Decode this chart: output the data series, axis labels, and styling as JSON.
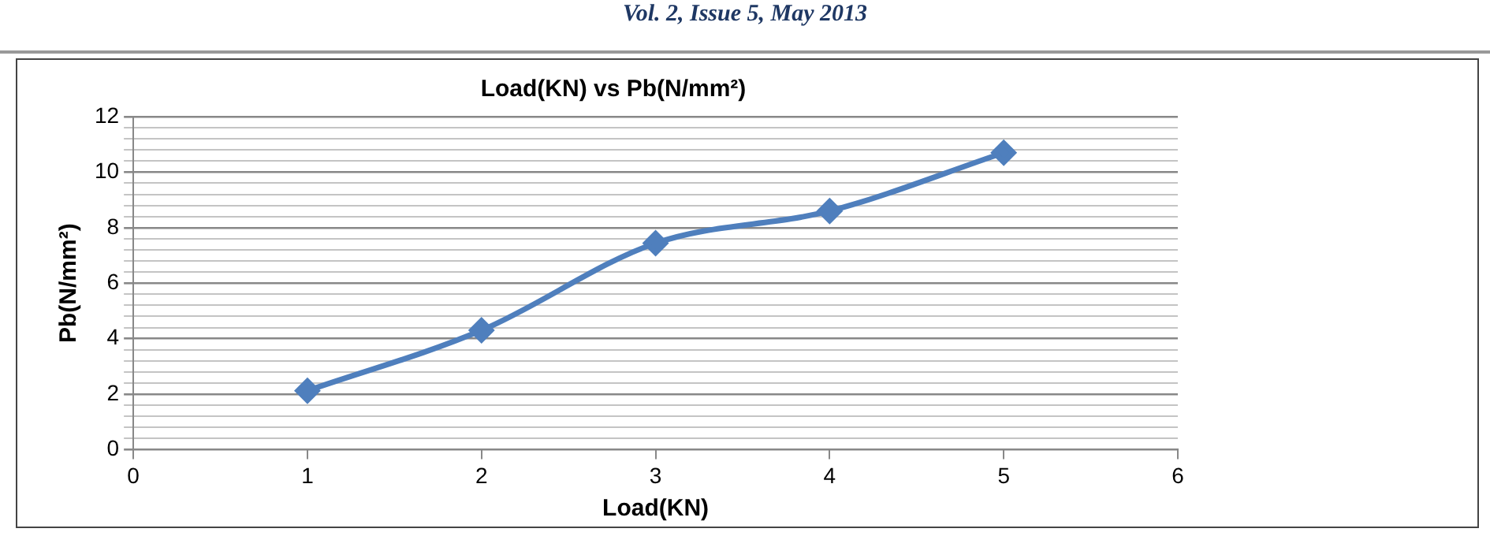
{
  "chart_data": {
    "type": "line",
    "title": "Load(KN) vs Pb(N/mm²)",
    "xlabel": "Load(KN)",
    "ylabel": "Pb(N/mm²)",
    "annotations": [
      "Vol. 2, Issue 5,  May 2013"
    ],
    "x": [
      1,
      2,
      3,
      4,
      5
    ],
    "series": [
      {
        "color": "#4f7fbd",
        "values": [
          2.12,
          4.3,
          7.44,
          8.6,
          10.7
        ]
      }
    ],
    "xlim": [
      0,
      6
    ],
    "xticks": [
      0,
      1,
      2,
      3,
      4,
      5,
      6
    ],
    "ylim": [
      0,
      12
    ],
    "yticks": [
      0,
      {
        "value": 0.4,
        "label": null
      },
      {
        "value": 0.8,
        "label": null
      },
      {
        "value": 1.2,
        "label": null
      },
      {
        "value": 1.6,
        "label": null
      },
      2,
      {
        "value": 2.4,
        "label": null
      },
      {
        "value": 2.8,
        "label": null
      },
      {
        "value": 3.2,
        "label": null
      },
      {
        "value": 3.6,
        "label": null
      },
      4,
      {
        "value": 4.4,
        "label": null
      },
      {
        "value": 4.8,
        "label": null
      },
      {
        "value": 5.2,
        "label": null
      },
      {
        "value": 5.6,
        "label": null
      },
      6,
      {
        "value": 6.4,
        "label": null
      },
      {
        "value": 6.8,
        "label": null
      },
      {
        "value": 7.2,
        "label": null
      },
      {
        "value": 7.6,
        "label": null
      },
      8,
      {
        "value": 8.4,
        "label": null
      },
      {
        "value": 8.8,
        "label": null
      },
      {
        "value": 9.2,
        "label": null
      },
      {
        "value": 9.6,
        "label": null
      },
      10,
      {
        "value": 10.4,
        "label": null
      },
      {
        "value": 10.8,
        "label": null
      },
      {
        "value": 11.2,
        "label": null
      },
      {
        "value": 11.6,
        "label": null
      },
      12
    ],
    "grid": "y",
    "legend": false,
    "marker": "diamond",
    "line_style": "solid"
  }
}
